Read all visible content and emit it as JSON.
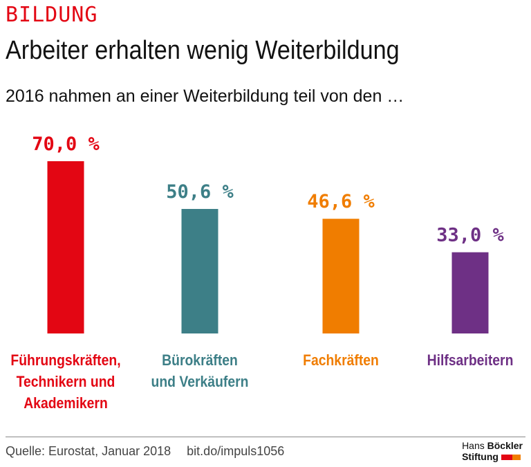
{
  "kicker": "BILDUNG",
  "title": "Arbeiter erhalten wenig Weiterbildung",
  "subtitle": "2016 nahmen an einer Weiterbildung teil von den …",
  "chart_data": {
    "type": "bar",
    "categories": [
      "Führungskräften, Technikern und Akademikern",
      "Bürokräften und Verkäufern",
      "Fachkräften",
      "Hilfsarbeitern"
    ],
    "category_lines": [
      [
        "Führungskräften,",
        "Technikern und",
        "Akademikern"
      ],
      [
        "Bürokräften",
        "und Verkäufern"
      ],
      [
        "Fachkräften"
      ],
      [
        "Hilfsarbeitern"
      ]
    ],
    "values": [
      70.0,
      50.6,
      46.6,
      33.0
    ],
    "value_labels": [
      "70,0 %",
      "50,6 %",
      "46,6 %",
      "33,0 %"
    ],
    "colors": [
      "#e30613",
      "#3d7f87",
      "#f07d00",
      "#6e3085"
    ],
    "unit": "%",
    "ylim": [
      0,
      70
    ],
    "grid": false
  },
  "footer": {
    "source": "Quelle: Eurostat, Januar 2018",
    "link": "bit.do/impuls1056"
  },
  "logo": {
    "line1a": "Hans ",
    "line1b": "Böckler",
    "line2": "Stiftung",
    "colors": [
      "#e30613",
      "#f07d00"
    ]
  }
}
